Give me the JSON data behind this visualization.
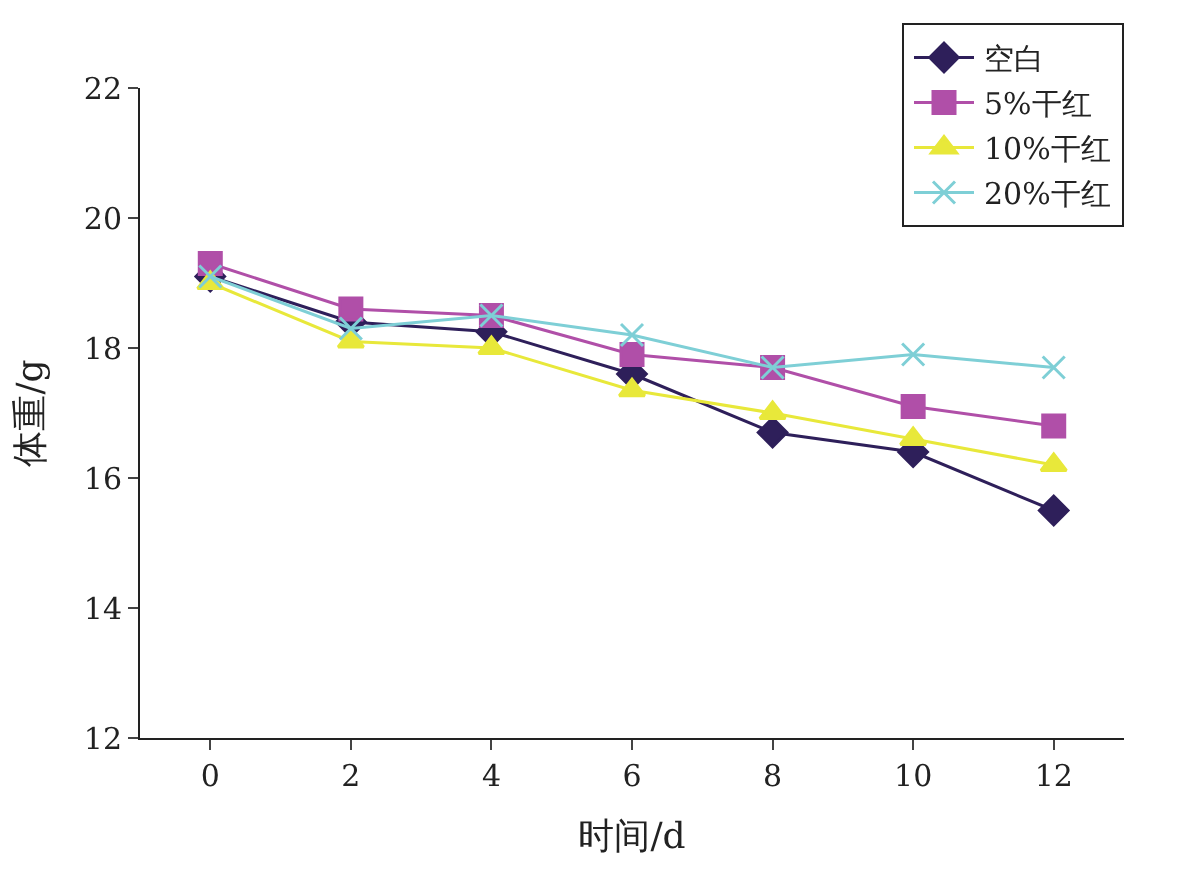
{
  "chart_data": {
    "type": "line",
    "xlabel": "时间/d",
    "ylabel": "体重/g",
    "x": [
      0,
      2,
      4,
      6,
      8,
      10,
      12
    ],
    "xlim": [
      -1,
      13
    ],
    "xticks": [
      0,
      2,
      4,
      6,
      8,
      10,
      12
    ],
    "ylim": [
      12,
      22
    ],
    "yticks": [
      12,
      14,
      16,
      18,
      20,
      22
    ],
    "legend": "top right",
    "line_style": "solid",
    "series": [
      {
        "name": "空白",
        "color": "#2e1f5a",
        "marker": "diamond",
        "values": [
          19.1,
          18.4,
          18.25,
          17.6,
          16.7,
          16.4,
          15.5
        ]
      },
      {
        "name": "5%干红",
        "color": "#b04fa8",
        "marker": "square",
        "values": [
          19.3,
          18.6,
          18.5,
          17.9,
          17.7,
          17.1,
          16.8
        ]
      },
      {
        "name": "10%干红",
        "color": "#e8e83a",
        "marker": "triangle",
        "values": [
          19.0,
          18.1,
          18.0,
          17.35,
          17.0,
          16.6,
          16.2
        ]
      },
      {
        "name": "20%干红",
        "color": "#7ecfd6",
        "marker": "cross",
        "values": [
          19.1,
          18.3,
          18.5,
          18.2,
          17.7,
          17.9,
          17.7
        ]
      }
    ]
  }
}
